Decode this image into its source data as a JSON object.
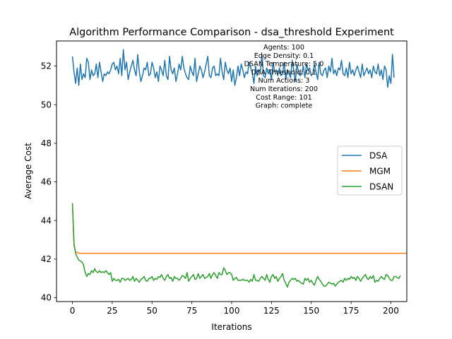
{
  "chart_data": {
    "type": "line",
    "title": "Algorithm Performance Comparison - dsa_threshold Experiment",
    "xlabel": "Iterations",
    "ylabel": "Average Cost",
    "xlim": [
      -10,
      210
    ],
    "ylim": [
      39.8,
      53.3
    ],
    "xticks": [
      0,
      25,
      50,
      75,
      100,
      125,
      150,
      175,
      200
    ],
    "yticks": [
      40,
      42,
      44,
      46,
      48,
      50,
      52
    ],
    "grid": false,
    "legend_position": "center-right",
    "annotation": [
      "Agents: 100",
      "Edge Density: 0.1",
      "DSAN Temperature: 5.0",
      "DSA Threshold: 0.1",
      "Num Actions: 3",
      "Num Iterations: 200",
      "Cost Range: 101",
      "Graph: complete"
    ],
    "series": [
      {
        "name": "DSA",
        "color": "#1f77b4",
        "x_start": 0,
        "x_step": 1,
        "values": [
          52.5,
          51.7,
          51.1,
          51.9,
          51.0,
          52.1,
          51.3,
          51.6,
          51.4,
          52.4,
          52.2,
          51.3,
          51.8,
          51.5,
          51.6,
          52.1,
          51.4,
          52.2,
          51.7,
          51.2,
          51.6,
          51.5,
          51.7,
          51.6,
          51.8,
          52.1,
          52.2,
          51.8,
          52.0,
          51.6,
          52.4,
          51.5,
          52.85,
          51.8,
          52.2,
          51.3,
          51.7,
          52.0,
          52.3,
          51.8,
          51.5,
          52.6,
          51.7,
          51.2,
          51.5,
          51.9,
          51.8,
          52.2,
          51.5,
          51.6,
          52.2,
          51.9,
          51.4,
          51.7,
          51.2,
          52.0,
          51.8,
          51.5,
          52.3,
          51.5,
          51.3,
          52.5,
          51.8,
          51.6,
          51.9,
          51.2,
          51.6,
          52.1,
          51.8,
          52.5,
          51.9,
          51.6,
          51.4,
          51.3,
          52.0,
          51.7,
          51.5,
          52.4,
          51.2,
          51.6,
          52.0,
          51.8,
          51.4,
          51.7,
          52.1,
          52.5,
          51.5,
          51.4,
          51.9,
          52.0,
          51.5,
          51.6,
          51.5,
          52.4,
          51.7,
          51.3,
          52.2,
          51.8,
          51.6,
          51.9,
          51.2,
          51.8,
          51.0,
          51.4,
          52.0,
          51.5,
          52.1,
          51.8,
          51.4,
          51.7,
          51.6,
          52.2,
          51.9,
          51.6,
          51.1,
          52.0,
          51.5,
          51.8,
          51.7,
          52.6,
          51.5,
          51.4,
          51.9,
          51.6,
          51.8,
          51.3,
          52.2,
          51.7,
          51.8,
          51.5,
          51.9,
          51.5,
          51.6,
          52.2,
          51.3,
          51.8,
          51.6,
          51.4,
          52.3,
          51.8,
          51.2,
          52.1,
          51.7,
          51.5,
          51.6,
          52.0,
          51.4,
          52.1,
          51.8,
          51.9,
          51.5,
          51.6,
          52.1,
          51.7,
          51.3,
          52.2,
          51.6,
          51.5,
          51.8,
          51.9,
          51.4,
          52.0,
          51.7,
          52.4,
          51.6,
          51.8,
          51.5,
          51.9,
          51.8,
          52.3,
          51.6,
          51.5,
          51.9,
          51.4,
          52.2,
          51.6,
          51.8,
          51.5,
          51.8,
          52.0,
          51.7,
          51.4,
          52.1,
          51.5,
          51.7,
          51.9,
          51.6,
          51.8,
          51.4,
          52.0,
          51.7,
          51.6,
          52.1,
          51.5,
          51.8,
          51.3,
          52.0,
          51.8,
          50.9,
          51.5,
          51.1,
          52.6,
          51.4
        ]
      },
      {
        "name": "MGM",
        "color": "#ff7f0e",
        "x_start": 0,
        "x_step": 1,
        "values": [
          44.9,
          42.7,
          42.35,
          42.35,
          42.3,
          42.3,
          42.3,
          42.3,
          42.3,
          42.3,
          42.3,
          42.3,
          42.3,
          42.3,
          42.3,
          42.3,
          42.3,
          42.3,
          42.3,
          42.3,
          42.3,
          42.3,
          42.3,
          42.3,
          42.3,
          42.3,
          42.3,
          42.3,
          42.3,
          42.3,
          42.3,
          42.3,
          42.3,
          42.3,
          42.3,
          42.3,
          42.3,
          42.3,
          42.3,
          42.3,
          42.3,
          42.3,
          42.3,
          42.3,
          42.3,
          42.3,
          42.3,
          42.3,
          42.3,
          42.3,
          42.3,
          42.3,
          42.3,
          42.3,
          42.3,
          42.3,
          42.3,
          42.3,
          42.3,
          42.3,
          42.3,
          42.3,
          42.3,
          42.3,
          42.3,
          42.3,
          42.3,
          42.3,
          42.3,
          42.3,
          42.3,
          42.3,
          42.3,
          42.3,
          42.3,
          42.3,
          42.3,
          42.3,
          42.3,
          42.3,
          42.3,
          42.3,
          42.3,
          42.3,
          42.3,
          42.3,
          42.3,
          42.3,
          42.3,
          42.3,
          42.3,
          42.3,
          42.3,
          42.3,
          42.3,
          42.3,
          42.3,
          42.3,
          42.3,
          42.3,
          42.3,
          42.3,
          42.3,
          42.3,
          42.3,
          42.3,
          42.3,
          42.3,
          42.3,
          42.3,
          42.3,
          42.3,
          42.3,
          42.3,
          42.3,
          42.3,
          42.3,
          42.3,
          42.3,
          42.3,
          42.3,
          42.3,
          42.3,
          42.3,
          42.3,
          42.3,
          42.3,
          42.3,
          42.3,
          42.3,
          42.3,
          42.3,
          42.3,
          42.3,
          42.3,
          42.3,
          42.3,
          42.3,
          42.3,
          42.3,
          42.3,
          42.3,
          42.3,
          42.3,
          42.3,
          42.3,
          42.3,
          42.3,
          42.3,
          42.3,
          42.3,
          42.3,
          42.3,
          42.3,
          42.3,
          42.3,
          42.3,
          42.3,
          42.3,
          42.3,
          42.3,
          42.3,
          42.3,
          42.3,
          42.3,
          42.3,
          42.3,
          42.3,
          42.3,
          42.3,
          42.3,
          42.3,
          42.3,
          42.3,
          42.3,
          42.3,
          42.3,
          42.3,
          42.3,
          42.3,
          42.3,
          42.3,
          42.3,
          42.3,
          42.3,
          42.3,
          42.3,
          42.3,
          42.3,
          42.3,
          42.3,
          42.3,
          42.3,
          42.3,
          42.3,
          42.3,
          42.3,
          42.3,
          42.3,
          42.3,
          42.3,
          42.3,
          42.3,
          42.3,
          42.3,
          42.3,
          42.3,
          42.3,
          42.3,
          42.3,
          42.3
        ]
      },
      {
        "name": "DSAN",
        "color": "#2ca02c",
        "x_start": 0,
        "x_step": 1,
        "values": [
          44.9,
          42.8,
          42.3,
          42.1,
          41.95,
          41.9,
          41.85,
          41.7,
          41.3,
          41.1,
          41.25,
          41.2,
          41.4,
          41.3,
          41.5,
          41.35,
          41.3,
          41.4,
          41.3,
          41.35,
          41.3,
          41.4,
          41.3,
          41.2,
          41.3,
          40.85,
          41.0,
          40.9,
          40.9,
          40.95,
          40.8,
          41.0,
          41.0,
          40.9,
          40.95,
          41.0,
          40.9,
          40.95,
          41.1,
          40.85,
          41.0,
          40.9,
          40.8,
          40.95,
          41.0,
          41.1,
          40.9,
          40.85,
          41.0,
          41.0,
          41.1,
          40.9,
          41.0,
          40.95,
          41.1,
          41.05,
          41.2,
          41.0,
          40.9,
          41.1,
          41.2,
          41.0,
          41.05,
          40.85,
          41.1,
          41.0,
          41.0,
          40.9,
          41.0,
          41.15,
          41.1,
          41.0,
          41.3,
          40.85,
          41.0,
          41.1,
          41.2,
          40.95,
          41.0,
          41.25,
          41.0,
          41.1,
          41.2,
          41.0,
          41.05,
          41.1,
          41.25,
          41.0,
          41.2,
          41.3,
          41.15,
          41.0,
          41.3,
          41.2,
          41.2,
          41.55,
          41.4,
          41.2,
          41.3,
          41.3,
          41.2,
          40.9,
          41.0,
          41.05,
          40.9,
          40.9,
          40.9,
          40.95,
          40.9,
          40.9,
          40.9,
          40.8,
          40.95,
          40.85,
          41.2,
          40.9,
          40.9,
          40.85,
          41.0,
          41.1,
          41.0,
          40.9,
          41.2,
          40.95,
          40.8,
          41.1,
          41.2,
          41.0,
          41.1,
          40.85,
          41.0,
          41.1,
          41.25,
          40.9,
          40.75,
          40.55,
          40.8,
          40.9,
          41.0,
          40.95,
          41.0,
          40.85,
          40.9,
          40.8,
          40.75,
          40.7,
          41.0,
          40.9,
          41.0,
          40.8,
          40.9,
          40.75,
          40.65,
          40.9,
          41.1,
          40.95,
          40.85,
          40.7,
          40.6,
          40.6,
          40.7,
          40.8,
          40.75,
          40.7,
          40.75,
          40.6,
          40.7,
          40.8,
          40.85,
          40.9,
          40.8,
          41.0,
          40.9,
          41.0,
          40.95,
          41.1,
          41.0,
          41.05,
          40.9,
          41.1,
          41.0,
          40.85,
          41.0,
          41.1,
          41.2,
          41.0,
          40.95,
          41.1,
          41.0,
          41.15,
          40.8,
          40.9,
          40.85,
          41.0,
          41.1,
          41.0,
          40.95,
          41.2,
          41.15,
          41.0,
          40.9,
          40.9,
          41.1,
          41.1,
          41.05,
          41.0,
          41.15
        ]
      }
    ]
  }
}
